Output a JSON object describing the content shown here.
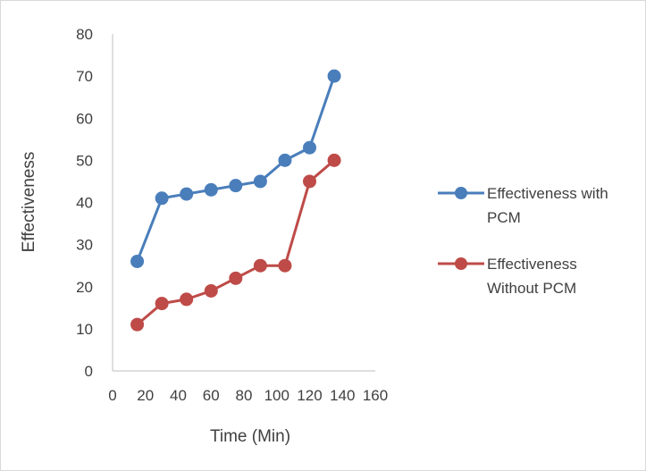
{
  "chart_data": {
    "type": "scatter",
    "xlabel": "Time (Min)",
    "ylabel": "Effectiveness",
    "xlim": [
      0,
      160
    ],
    "ylim": [
      0,
      80
    ],
    "x_ticks": [
      0,
      20,
      40,
      60,
      80,
      100,
      120,
      140,
      160
    ],
    "y_ticks": [
      0,
      10,
      20,
      30,
      40,
      50,
      60,
      70,
      80
    ],
    "grid": false,
    "legend_position": "right",
    "series": [
      {
        "name": "Effectiveness with PCM",
        "legend_lines": [
          "Effectiveness with",
          "PCM"
        ],
        "color": "#4a7ebb",
        "x": [
          15,
          30,
          45,
          60,
          75,
          90,
          105,
          120,
          135
        ],
        "y": [
          26,
          41,
          42,
          43,
          44,
          45,
          50,
          53,
          70
        ]
      },
      {
        "name": "Effectiveness Without PCM",
        "legend_lines": [
          "Effectiveness",
          "Without PCM"
        ],
        "color": "#be4b48",
        "x": [
          15,
          30,
          45,
          60,
          75,
          90,
          105,
          120,
          135
        ],
        "y": [
          11,
          16,
          17,
          19,
          22,
          25,
          25,
          45,
          50
        ]
      }
    ]
  }
}
